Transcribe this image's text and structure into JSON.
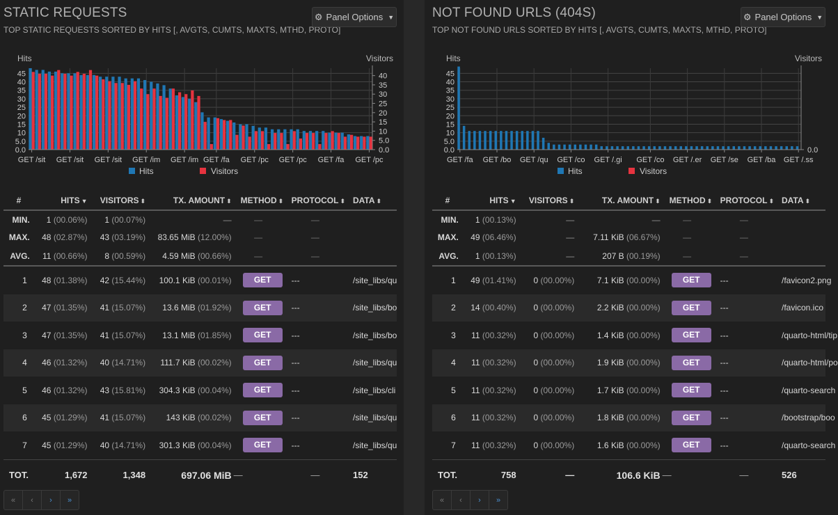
{
  "panels": [
    {
      "title": "STATIC REQUESTS",
      "subtitle": "TOP STATIC REQUESTS SORTED BY HITS [, AVGTS, CUMTS, MAXTS, MTHD, PROTO]",
      "options_label": "Panel Options",
      "columns": [
        "#",
        "HITS",
        "VISITORS",
        "TX. AMOUNT",
        "METHOD",
        "PROTOCOL",
        "DATA"
      ],
      "summary": [
        {
          "label": "MIN.",
          "hits": "1",
          "hits_pct": "(00.06%)",
          "visitors": "1",
          "visitors_pct": "(00.07%)",
          "tx": "—",
          "tx_pct": "",
          "method": "—",
          "protocol": "—",
          "data": ""
        },
        {
          "label": "MAX.",
          "hits": "48",
          "hits_pct": "(02.87%)",
          "visitors": "43",
          "visitors_pct": "(03.19%)",
          "tx": "83.65 MiB",
          "tx_pct": "(12.00%)",
          "method": "—",
          "protocol": "—",
          "data": ""
        },
        {
          "label": "AVG.",
          "hits": "11",
          "hits_pct": "(00.66%)",
          "visitors": "8",
          "visitors_pct": "(00.59%)",
          "tx": "4.59 MiB",
          "tx_pct": "(00.66%)",
          "method": "—",
          "protocol": "—",
          "data": ""
        }
      ],
      "rows": [
        {
          "n": "1",
          "hits": "48",
          "hits_pct": "(01.38%)",
          "visitors": "42",
          "visitors_pct": "(15.44%)",
          "tx": "100.1 KiB",
          "tx_pct": "(00.01%)",
          "method": "GET",
          "protocol": "---",
          "data": "/site_libs/qu"
        },
        {
          "n": "2",
          "hits": "47",
          "hits_pct": "(01.35%)",
          "visitors": "41",
          "visitors_pct": "(15.07%)",
          "tx": "13.6 MiB",
          "tx_pct": "(01.92%)",
          "method": "GET",
          "protocol": "---",
          "data": "/site_libs/bo"
        },
        {
          "n": "3",
          "hits": "47",
          "hits_pct": "(01.35%)",
          "visitors": "41",
          "visitors_pct": "(15.07%)",
          "tx": "13.1 MiB",
          "tx_pct": "(01.85%)",
          "method": "GET",
          "protocol": "---",
          "data": "/site_libs/bo"
        },
        {
          "n": "4",
          "hits": "46",
          "hits_pct": "(01.32%)",
          "visitors": "40",
          "visitors_pct": "(14.71%)",
          "tx": "111.7 KiB",
          "tx_pct": "(00.02%)",
          "method": "GET",
          "protocol": "---",
          "data": "/site_libs/qu"
        },
        {
          "n": "5",
          "hits": "46",
          "hits_pct": "(01.32%)",
          "visitors": "43",
          "visitors_pct": "(15.81%)",
          "tx": "304.3 KiB",
          "tx_pct": "(00.04%)",
          "method": "GET",
          "protocol": "---",
          "data": "/site_libs/cli"
        },
        {
          "n": "6",
          "hits": "45",
          "hits_pct": "(01.29%)",
          "visitors": "41",
          "visitors_pct": "(15.07%)",
          "tx": "143 KiB",
          "tx_pct": "(00.02%)",
          "method": "GET",
          "protocol": "---",
          "data": "/site_libs/qu"
        },
        {
          "n": "7",
          "hits": "45",
          "hits_pct": "(01.29%)",
          "visitors": "40",
          "visitors_pct": "(14.71%)",
          "tx": "301.3 KiB",
          "tx_pct": "(00.04%)",
          "method": "GET",
          "protocol": "---",
          "data": "/site_libs/qu"
        }
      ],
      "total": {
        "label": "TOT.",
        "hits": "1,672",
        "visitors": "1,348",
        "tx": "697.06 MiB",
        "method": "—",
        "protocol": "—",
        "data": "152"
      }
    },
    {
      "title": "NOT FOUND URLS (404S)",
      "subtitle": "TOP NOT FOUND URLS SORTED BY HITS [, AVGTS, CUMTS, MAXTS, MTHD, PROTO]",
      "options_label": "Panel Options",
      "columns": [
        "#",
        "HITS",
        "VISITORS",
        "TX. AMOUNT",
        "METHOD",
        "PROTOCOL",
        "DATA"
      ],
      "summary": [
        {
          "label": "MIN.",
          "hits": "1",
          "hits_pct": "(00.13%)",
          "visitors": "—",
          "visitors_pct": "",
          "tx": "—",
          "tx_pct": "",
          "method": "—",
          "protocol": "—",
          "data": ""
        },
        {
          "label": "MAX.",
          "hits": "49",
          "hits_pct": "(06.46%)",
          "visitors": "—",
          "visitors_pct": "",
          "tx": "7.11 KiB",
          "tx_pct": "(06.67%)",
          "method": "—",
          "protocol": "—",
          "data": ""
        },
        {
          "label": "AVG.",
          "hits": "1",
          "hits_pct": "(00.13%)",
          "visitors": "—",
          "visitors_pct": "",
          "tx": "207 B",
          "tx_pct": "(00.19%)",
          "method": "—",
          "protocol": "—",
          "data": ""
        }
      ],
      "rows": [
        {
          "n": "1",
          "hits": "49",
          "hits_pct": "(01.41%)",
          "visitors": "0",
          "visitors_pct": "(00.00%)",
          "tx": "7.1 KiB",
          "tx_pct": "(00.00%)",
          "method": "GET",
          "protocol": "---",
          "data": "/favicon2.png"
        },
        {
          "n": "2",
          "hits": "14",
          "hits_pct": "(00.40%)",
          "visitors": "0",
          "visitors_pct": "(00.00%)",
          "tx": "2.2 KiB",
          "tx_pct": "(00.00%)",
          "method": "GET",
          "protocol": "---",
          "data": "/favicon.ico"
        },
        {
          "n": "3",
          "hits": "11",
          "hits_pct": "(00.32%)",
          "visitors": "0",
          "visitors_pct": "(00.00%)",
          "tx": "1.4 KiB",
          "tx_pct": "(00.00%)",
          "method": "GET",
          "protocol": "---",
          "data": "/quarto-html/tip"
        },
        {
          "n": "4",
          "hits": "11",
          "hits_pct": "(00.32%)",
          "visitors": "0",
          "visitors_pct": "(00.00%)",
          "tx": "1.9 KiB",
          "tx_pct": "(00.00%)",
          "method": "GET",
          "protocol": "---",
          "data": "/quarto-html/po"
        },
        {
          "n": "5",
          "hits": "11",
          "hits_pct": "(00.32%)",
          "visitors": "0",
          "visitors_pct": "(00.00%)",
          "tx": "1.7 KiB",
          "tx_pct": "(00.00%)",
          "method": "GET",
          "protocol": "---",
          "data": "/quarto-search"
        },
        {
          "n": "6",
          "hits": "11",
          "hits_pct": "(00.32%)",
          "visitors": "0",
          "visitors_pct": "(00.00%)",
          "tx": "1.8 KiB",
          "tx_pct": "(00.00%)",
          "method": "GET",
          "protocol": "---",
          "data": "/bootstrap/boo"
        },
        {
          "n": "7",
          "hits": "11",
          "hits_pct": "(00.32%)",
          "visitors": "0",
          "visitors_pct": "(00.00%)",
          "tx": "1.6 KiB",
          "tx_pct": "(00.00%)",
          "method": "GET",
          "protocol": "---",
          "data": "/quarto-search"
        }
      ],
      "total": {
        "label": "TOT.",
        "hits": "758",
        "visitors": "—",
        "tx": "106.6 KiB",
        "method": "—",
        "protocol": "—",
        "data": "526"
      }
    }
  ],
  "pager": {
    "first": "«",
    "prev": "‹",
    "next": "›",
    "last": "»"
  },
  "colors": {
    "hits": "#1f77b4",
    "visitors": "#e6333f",
    "get_button": "#8a6aa6",
    "background": "#1f1f1f"
  },
  "chart_data": [
    {
      "type": "bar",
      "ylabel": "Hits",
      "y2label": "Visitors",
      "ylim": [
        0,
        48
      ],
      "y2lim": [
        0,
        43
      ],
      "yticks": [
        "0.0",
        "5.0",
        "10",
        "15",
        "20",
        "25",
        "30",
        "35",
        "40",
        "45"
      ],
      "y2ticks": [
        "0.0",
        "5.0",
        "10",
        "15",
        "20",
        "25",
        "30",
        "35",
        "40"
      ],
      "xticklabels": [
        "GET /sit",
        "GET /sit",
        "GET /sit",
        "GET /im",
        "GET /im",
        "GET /fa",
        "GET /pc",
        "GET /pc",
        "GET /fa",
        "GET /pc"
      ],
      "legend": [
        "Hits",
        "Visitors"
      ],
      "series": [
        {
          "name": "Hits",
          "values": [
            48,
            47,
            47,
            46,
            46,
            45,
            45,
            45,
            44,
            44,
            44,
            43,
            43,
            43,
            43,
            42,
            42,
            42,
            41,
            40,
            39,
            38,
            36,
            32,
            31,
            30,
            28,
            22,
            19,
            19,
            18,
            17,
            16,
            15,
            15,
            14,
            13,
            13,
            12,
            12,
            12,
            12,
            12,
            11,
            11,
            11,
            11,
            10,
            10,
            10,
            9,
            8,
            8,
            8
          ]
        },
        {
          "name": "Visitors",
          "values": [
            42,
            41,
            41,
            40,
            43,
            41,
            40,
            42,
            41,
            43,
            40,
            38,
            37,
            36,
            36,
            35,
            37,
            33,
            30,
            33,
            29,
            28,
            33,
            31,
            30,
            32,
            29,
            15,
            3,
            17,
            16,
            16,
            8,
            13,
            7,
            10,
            10,
            3,
            9,
            9,
            3,
            10,
            6,
            9,
            9,
            3,
            9,
            10,
            9,
            7,
            8,
            7,
            7,
            7
          ]
        }
      ]
    },
    {
      "type": "bar",
      "ylabel": "Hits",
      "y2label": "Visitors",
      "ylim": [
        0,
        49
      ],
      "y2lim": [
        0,
        1
      ],
      "yticks": [
        "0.0",
        "5.0",
        "10",
        "15",
        "20",
        "25",
        "30",
        "35",
        "40",
        "45"
      ],
      "y2ticks": [
        "0.0"
      ],
      "xticklabels": [
        "GET /fa",
        "GET /bo",
        "GET /qu",
        "GET /co",
        "GET /.gi",
        "GET /co",
        "GET /.er",
        "GET /se",
        "GET /ba",
        "GET /.ss"
      ],
      "legend": [
        "Hits",
        "Visitors"
      ],
      "series": [
        {
          "name": "Hits",
          "values": [
            49,
            14,
            11,
            11,
            11,
            11,
            11,
            11,
            11,
            11,
            11,
            11,
            11,
            11,
            11,
            11,
            7,
            4,
            3,
            3,
            3,
            3,
            3,
            3,
            3,
            3,
            3,
            2,
            2,
            2,
            2,
            2,
            2,
            2,
            2,
            2,
            2,
            2,
            2,
            2,
            2,
            2,
            2,
            2,
            2,
            2,
            2,
            2,
            2,
            2,
            2,
            2,
            2,
            2,
            2,
            2,
            2,
            2,
            2,
            2,
            2,
            2,
            2,
            2,
            2
          ]
        },
        {
          "name": "Visitors",
          "values": [
            0,
            0,
            0,
            0,
            0,
            0,
            0,
            0,
            0,
            0,
            0,
            0,
            0,
            0,
            0,
            0,
            0,
            0,
            0,
            0,
            0,
            0,
            0,
            0,
            0,
            0,
            0,
            0,
            0,
            0,
            0,
            0,
            0,
            0,
            0,
            0,
            0,
            0,
            0,
            0,
            0,
            0,
            0,
            0,
            0,
            0,
            0,
            0,
            0,
            0,
            0,
            0,
            0,
            0,
            0,
            0,
            0,
            0,
            0,
            0,
            0,
            0,
            0,
            0,
            0
          ]
        }
      ]
    }
  ]
}
